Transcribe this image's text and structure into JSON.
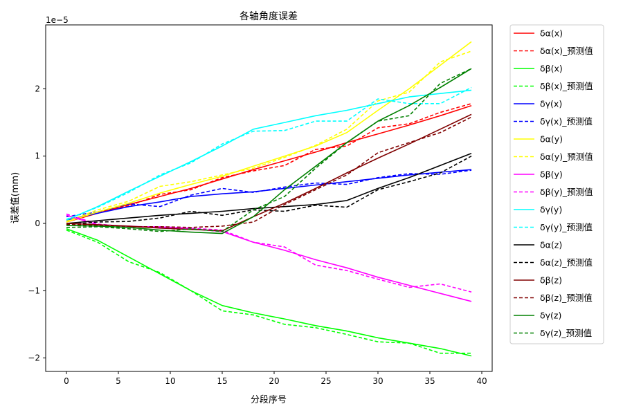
{
  "chart_data": {
    "type": "line",
    "title": "各轴角度误差",
    "xlabel": "分段序号",
    "ylabel": "误差值(mm)",
    "scale_note": "1e−5",
    "xlim": [
      -2,
      41
    ],
    "ylim": [
      -2.2,
      2.95
    ],
    "xticks": [
      0,
      5,
      10,
      15,
      20,
      25,
      30,
      35,
      40
    ],
    "yticks": [
      -2,
      -1,
      0,
      1,
      2
    ],
    "ytick_labels": [
      "−2",
      "−1",
      "0",
      "1",
      "2"
    ],
    "legend_position": "outside-right",
    "x": [
      0,
      3,
      6,
      9,
      12,
      15,
      18,
      21,
      24,
      27,
      30,
      33,
      36,
      39
    ],
    "series": [
      {
        "name": "δα(x)",
        "color": "#ff0000",
        "dash": false,
        "values": [
          0.02,
          0.15,
          0.28,
          0.4,
          0.52,
          0.66,
          0.8,
          0.93,
          1.06,
          1.2,
          1.33,
          1.46,
          1.6,
          1.75
        ]
      },
      {
        "name": "δα(x)_预测值",
        "color": "#ff0000",
        "dash": true,
        "values": [
          0.03,
          0.17,
          0.26,
          0.43,
          0.5,
          0.68,
          0.78,
          0.86,
          1.1,
          1.15,
          1.42,
          1.48,
          1.65,
          1.78
        ]
      },
      {
        "name": "δβ(x)",
        "color": "#00ff00",
        "dash": false,
        "values": [
          -0.08,
          -0.25,
          -0.5,
          -0.75,
          -1.0,
          -1.22,
          -1.33,
          -1.42,
          -1.52,
          -1.6,
          -1.7,
          -1.78,
          -1.86,
          -1.97
        ]
      },
      {
        "name": "δβ(x)_预测值",
        "color": "#00ff00",
        "dash": true,
        "values": [
          -0.1,
          -0.28,
          -0.57,
          -0.73,
          -1.0,
          -1.3,
          -1.36,
          -1.5,
          -1.55,
          -1.65,
          -1.76,
          -1.78,
          -1.93,
          -1.93
        ]
      },
      {
        "name": "δγ(x)",
        "color": "#0000ff",
        "dash": false,
        "values": [
          0.05,
          0.15,
          0.25,
          0.32,
          0.4,
          0.44,
          0.47,
          0.52,
          0.57,
          0.62,
          0.67,
          0.72,
          0.76,
          0.8
        ]
      },
      {
        "name": "δγ(x)_预测值",
        "color": "#0000ff",
        "dash": true,
        "values": [
          0.1,
          0.17,
          0.29,
          0.25,
          0.42,
          0.52,
          0.46,
          0.54,
          0.6,
          0.58,
          0.68,
          0.74,
          0.73,
          0.79
        ]
      },
      {
        "name": "δα(y)",
        "color": "#ffff00",
        "dash": false,
        "values": [
          0.02,
          0.17,
          0.3,
          0.45,
          0.58,
          0.7,
          0.85,
          1.0,
          1.15,
          1.35,
          1.68,
          2.0,
          2.35,
          2.7
        ]
      },
      {
        "name": "δα(y)_预测值",
        "color": "#ffff00",
        "dash": true,
        "values": [
          0.03,
          0.2,
          0.33,
          0.55,
          0.62,
          0.72,
          0.82,
          0.98,
          1.16,
          1.4,
          1.82,
          1.95,
          2.4,
          2.56
        ]
      },
      {
        "name": "δβ(y)",
        "color": "#ff00ff",
        "dash": false,
        "values": [
          0.12,
          -0.02,
          -0.04,
          -0.06,
          -0.08,
          -0.12,
          -0.28,
          -0.4,
          -0.54,
          -0.66,
          -0.8,
          -0.92,
          -1.04,
          -1.16
        ]
      },
      {
        "name": "δβ(y)_预测值",
        "color": "#ff00ff",
        "dash": true,
        "values": [
          0.14,
          -0.01,
          -0.05,
          -0.05,
          -0.07,
          -0.1,
          -0.28,
          -0.35,
          -0.62,
          -0.7,
          -0.83,
          -0.95,
          -0.9,
          -1.02
        ]
      },
      {
        "name": "δγ(y)",
        "color": "#00ffff",
        "dash": false,
        "values": [
          0.05,
          0.25,
          0.48,
          0.7,
          0.92,
          1.15,
          1.4,
          1.5,
          1.6,
          1.68,
          1.78,
          1.88,
          1.93,
          1.98
        ]
      },
      {
        "name": "δγ(y)_预测值",
        "color": "#00ffff",
        "dash": true,
        "values": [
          0.06,
          0.24,
          0.46,
          0.72,
          0.9,
          1.18,
          1.37,
          1.38,
          1.52,
          1.52,
          1.85,
          1.78,
          1.78,
          2.02
        ]
      },
      {
        "name": "δα(z)",
        "color": "#000000",
        "dash": false,
        "values": [
          0.0,
          0.04,
          0.08,
          0.12,
          0.15,
          0.18,
          0.22,
          0.25,
          0.28,
          0.34,
          0.52,
          0.68,
          0.86,
          1.04
        ]
      },
      {
        "name": "δα(z)_预测值",
        "color": "#000000",
        "dash": true,
        "values": [
          -0.02,
          0.02,
          0.03,
          0.08,
          0.18,
          0.12,
          0.2,
          0.18,
          0.27,
          0.24,
          0.5,
          0.62,
          0.75,
          1.0
        ]
      },
      {
        "name": "δβ(z)",
        "color": "#800000",
        "dash": false,
        "values": [
          0.0,
          -0.02,
          -0.04,
          -0.07,
          -0.09,
          -0.11,
          0.1,
          0.3,
          0.52,
          0.75,
          0.97,
          1.18,
          1.4,
          1.62
        ]
      },
      {
        "name": "δβ(z)_预测值",
        "color": "#800000",
        "dash": true,
        "values": [
          -0.01,
          -0.03,
          -0.05,
          -0.05,
          -0.06,
          -0.04,
          0.02,
          0.28,
          0.5,
          0.72,
          1.05,
          1.2,
          1.35,
          1.58
        ]
      },
      {
        "name": "δγ(z)",
        "color": "#008000",
        "dash": false,
        "values": [
          -0.03,
          -0.04,
          -0.06,
          -0.1,
          -0.13,
          -0.15,
          0.1,
          0.5,
          0.85,
          1.2,
          1.52,
          1.75,
          2.02,
          2.3
        ]
      },
      {
        "name": "δγ(z)_预测值",
        "color": "#008000",
        "dash": true,
        "values": [
          -0.06,
          -0.05,
          -0.08,
          -0.12,
          -0.08,
          -0.12,
          0.2,
          0.4,
          0.82,
          1.2,
          1.52,
          1.6,
          2.08,
          2.3
        ]
      }
    ]
  }
}
